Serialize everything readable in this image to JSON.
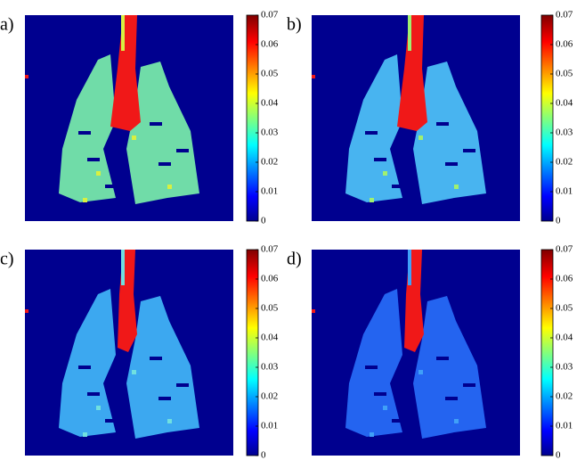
{
  "panels": [
    {
      "label": "a)",
      "colorbar": {
        "lim": [
          0,
          0.07
        ],
        "ticks": [
          0,
          0.01,
          0.02,
          0.03,
          0.04,
          0.05,
          0.06,
          0.07
        ]
      }
    },
    {
      "label": "b)",
      "colorbar": {
        "lim": [
          0,
          0.07
        ],
        "ticks": [
          0,
          0.01,
          0.02,
          0.03,
          0.04,
          0.05,
          0.06,
          0.07
        ]
      }
    },
    {
      "label": "c)",
      "colorbar": {
        "lim": [
          0,
          0.07
        ],
        "ticks": [
          0,
          0.01,
          0.02,
          0.03,
          0.04,
          0.05,
          0.06,
          0.07
        ]
      }
    },
    {
      "label": "d)",
      "colorbar": {
        "lim": [
          0,
          0.07
        ],
        "ticks": [
          0,
          0.01,
          0.02,
          0.03,
          0.04,
          0.05,
          0.06,
          0.07
        ]
      }
    }
  ]
}
